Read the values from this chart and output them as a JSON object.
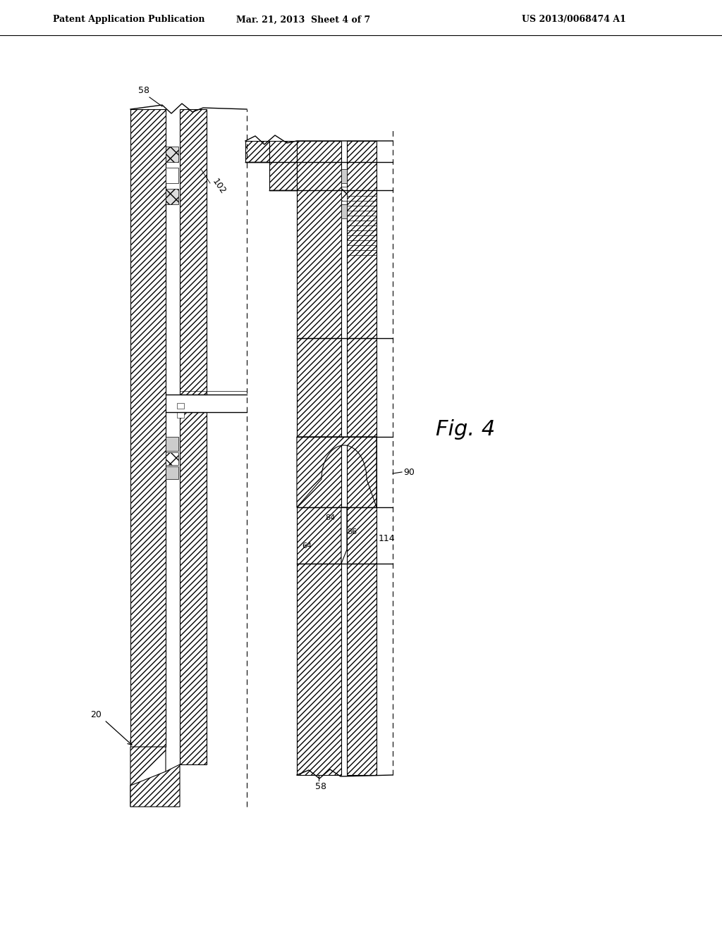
{
  "bg": "#ffffff",
  "lc": "#000000",
  "header_left": "Patent Application Publication",
  "header_mid": "Mar. 21, 2013  Sheet 4 of 7",
  "header_right": "US 2013/0068474 A1",
  "fig_label": "Fig. 4",
  "label_58_top_left": "58",
  "label_102": "102",
  "label_20": "20",
  "label_58_bot_right": "58",
  "label_90": "90",
  "label_84": "84",
  "label_86": "86",
  "label_64": "64",
  "label_114": "114"
}
